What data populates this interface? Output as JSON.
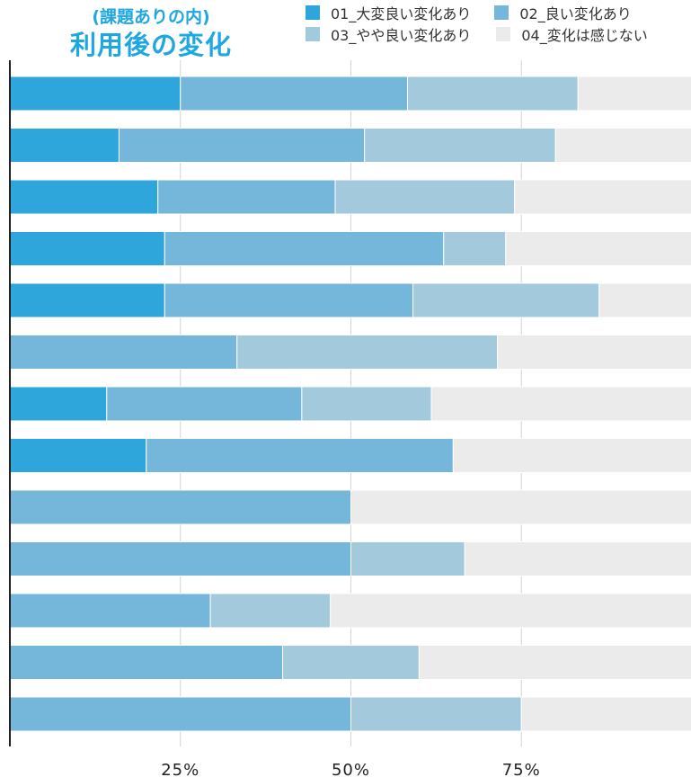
{
  "title": {
    "sub": "(課題ありの内)",
    "main": "利用後の変化"
  },
  "legend": [
    {
      "label": "01_大変良い変化あり",
      "color": "#2ea6dc"
    },
    {
      "label": "02_良い変化あり",
      "color": "#74b7da"
    },
    {
      "label": "03_やや良い変化あり",
      "color": "#a3c9dc"
    },
    {
      "label": "04_変化は感じない",
      "color": "#ebebeb"
    }
  ],
  "chart_data": {
    "type": "bar",
    "orientation": "horizontal",
    "stacked": true,
    "title": "利用後の変化",
    "subtitle": "(課題ありの内)",
    "xlim": [
      0,
      100
    ],
    "x_ticks": [
      "25%",
      "50%",
      "75%"
    ],
    "x_tick_values": [
      25,
      50,
      75
    ],
    "grid": true,
    "legend_position": "top-right",
    "categories": [
      "",
      "",
      "",
      "",
      "",
      "",
      "",
      "",
      "",
      "",
      "",
      "",
      ""
    ],
    "series": [
      {
        "name": "01_大変良い変化あり",
        "color": "#2ea6dc",
        "values": [
          25,
          16,
          21.7,
          22.7,
          22.7,
          0,
          14.2,
          20,
          0,
          0,
          0,
          0,
          0
        ]
      },
      {
        "name": "02_良い変化あり",
        "color": "#74b7da",
        "values": [
          33.3,
          36,
          26,
          40.9,
          36.4,
          33.3,
          28.6,
          45,
          50,
          50,
          29.4,
          40,
          50
        ]
      },
      {
        "name": "03_やや良い変化あり",
        "color": "#a3c9dc",
        "values": [
          25,
          28,
          26.3,
          9.1,
          27.3,
          38.2,
          19,
          0,
          0,
          16.7,
          17.6,
          20,
          25
        ]
      },
      {
        "name": "04_変化は感じない",
        "color": "#ebebeb",
        "values": [
          16.7,
          20,
          26,
          27.3,
          13.6,
          28.5,
          38.2,
          35,
          50,
          33.3,
          53,
          40,
          25
        ]
      }
    ]
  }
}
